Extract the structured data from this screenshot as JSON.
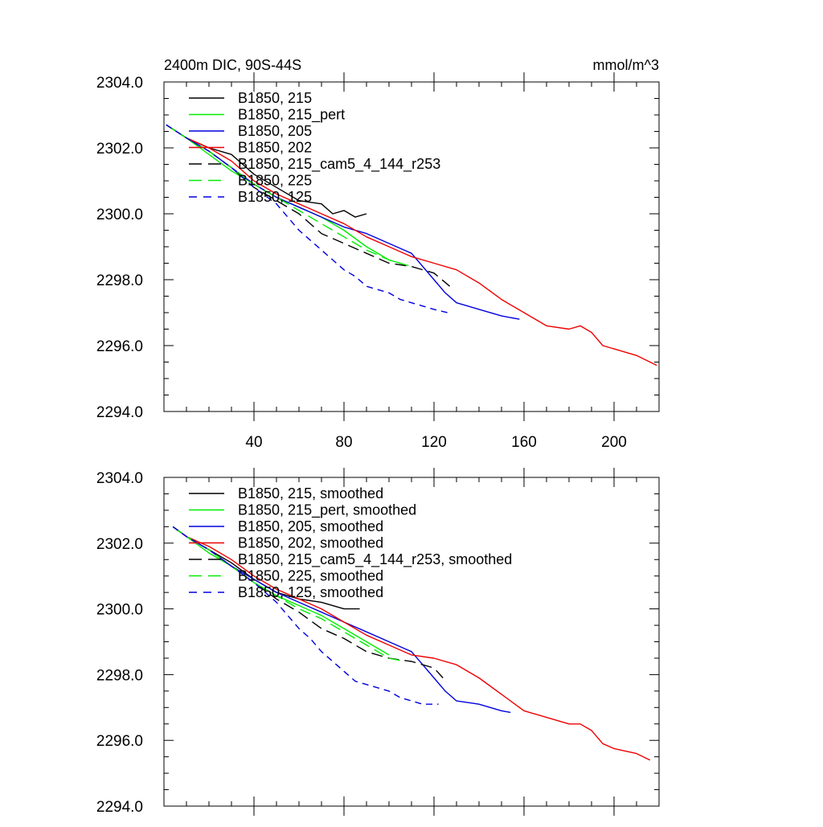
{
  "chart_data": [
    {
      "type": "line",
      "title": "2400m DIC, 90S-44S",
      "units": "mmol/m^3",
      "xlim": [
        0,
        220
      ],
      "ylim": [
        2294.0,
        2304.0
      ],
      "xticks": [
        40,
        80,
        120,
        160,
        200
      ],
      "xtick_labels": [
        "40",
        "80",
        "120",
        "160",
        "200"
      ],
      "yticks": [
        2294.0,
        2296.0,
        2298.0,
        2300.0,
        2302.0,
        2304.0
      ],
      "ytick_labels": [
        "2294.0",
        "2296.0",
        "2298.0",
        "2300.0",
        "2302.0",
        "2304.0"
      ],
      "grid": false,
      "legend_position": "top-left",
      "series": [
        {
          "name": "B1850, 215",
          "color": "#000000",
          "dash": "solid",
          "x": [
            1,
            10,
            20,
            30,
            35,
            40,
            50,
            60,
            70,
            75,
            80,
            85,
            90
          ],
          "y": [
            2302.7,
            2302.3,
            2302.0,
            2301.8,
            2301.5,
            2301.2,
            2300.8,
            2300.4,
            2300.3,
            2300.0,
            2300.1,
            2299.9,
            2300.0
          ]
        },
        {
          "name": "B1850, 215_pert",
          "color": "#00ee00",
          "dash": "solid",
          "x": [
            1,
            10,
            20,
            30,
            40,
            50,
            60,
            70,
            80,
            90,
            100,
            105
          ],
          "y": [
            2302.7,
            2302.3,
            2301.8,
            2301.3,
            2300.9,
            2300.5,
            2300.2,
            2299.9,
            2299.5,
            2299.0,
            2298.6,
            2298.5
          ]
        },
        {
          "name": "B1850, 205",
          "color": "#0000dd",
          "dash": "solid",
          "x": [
            1,
            10,
            20,
            30,
            40,
            50,
            60,
            70,
            80,
            90,
            100,
            110,
            120,
            125,
            130,
            140,
            150,
            158
          ],
          "y": [
            2302.7,
            2302.3,
            2301.9,
            2301.4,
            2300.9,
            2300.5,
            2300.2,
            2299.9,
            2299.6,
            2299.4,
            2299.1,
            2298.8,
            2298.0,
            2297.6,
            2297.3,
            2297.1,
            2296.9,
            2296.8
          ]
        },
        {
          "name": "B1850, 202",
          "color": "#ee0000",
          "dash": "solid",
          "x": [
            1,
            10,
            20,
            30,
            40,
            50,
            60,
            70,
            80,
            90,
            100,
            110,
            120,
            130,
            140,
            150,
            160,
            170,
            180,
            185,
            190,
            195,
            200,
            210,
            219
          ],
          "y": [
            2302.7,
            2302.3,
            2302.0,
            2301.6,
            2301.0,
            2300.6,
            2300.3,
            2300.0,
            2299.7,
            2299.3,
            2299.0,
            2298.7,
            2298.5,
            2298.3,
            2297.9,
            2297.4,
            2297.0,
            2296.6,
            2296.5,
            2296.6,
            2296.4,
            2296.0,
            2295.9,
            2295.7,
            2295.4
          ]
        },
        {
          "name": "B1850, 215_cam5_4_144_r253",
          "color": "#000000",
          "dash": "long",
          "x": [
            1,
            10,
            20,
            30,
            40,
            50,
            60,
            70,
            80,
            90,
            100,
            110,
            120,
            127
          ],
          "y": [
            2302.7,
            2302.3,
            2301.9,
            2301.4,
            2300.8,
            2300.4,
            2300.0,
            2299.4,
            2299.1,
            2298.8,
            2298.5,
            2298.4,
            2298.2,
            2297.8
          ]
        },
        {
          "name": "B1850, 225",
          "color": "#00ee00",
          "dash": "long",
          "x": [
            1,
            10,
            20,
            30,
            40,
            50,
            60,
            70,
            80,
            90,
            100,
            110
          ],
          "y": [
            2302.7,
            2302.3,
            2301.9,
            2301.4,
            2300.9,
            2300.5,
            2300.1,
            2299.7,
            2299.3,
            2298.9,
            2298.6,
            2298.4
          ]
        },
        {
          "name": "B1850, 125",
          "color": "#0000dd",
          "dash": "short",
          "x": [
            1,
            10,
            20,
            30,
            40,
            50,
            55,
            60,
            65,
            70,
            75,
            80,
            85,
            90,
            95,
            100,
            105,
            110,
            115,
            120,
            126
          ],
          "y": [
            2302.7,
            2302.3,
            2301.9,
            2301.4,
            2300.8,
            2300.3,
            2299.9,
            2299.5,
            2299.2,
            2298.9,
            2298.6,
            2298.3,
            2298.1,
            2297.8,
            2297.7,
            2297.6,
            2297.4,
            2297.3,
            2297.2,
            2297.1,
            2297.0
          ]
        }
      ]
    },
    {
      "type": "line",
      "xlim": [
        0,
        220
      ],
      "ylim": [
        2294.0,
        2304.0
      ],
      "xticks": [
        40,
        80,
        120,
        160,
        200
      ],
      "yticks": [
        2294.0,
        2296.0,
        2298.0,
        2300.0,
        2302.0,
        2304.0
      ],
      "ytick_labels": [
        "2294.0",
        "2296.0",
        "2298.0",
        "2300.0",
        "2302.0",
        "2304.0"
      ],
      "grid": false,
      "legend_position": "top-left",
      "series": [
        {
          "name": "B1850, 215, smoothed",
          "color": "#000000",
          "dash": "solid",
          "x": [
            4,
            10,
            20,
            30,
            40,
            50,
            60,
            70,
            80,
            87
          ],
          "y": [
            2302.5,
            2302.2,
            2301.8,
            2301.4,
            2300.9,
            2300.5,
            2300.3,
            2300.2,
            2300.0,
            2300.0
          ]
        },
        {
          "name": "B1850, 215_pert, smoothed",
          "color": "#00ee00",
          "dash": "solid",
          "x": [
            4,
            10,
            20,
            30,
            40,
            50,
            60,
            70,
            80,
            90,
            100
          ],
          "y": [
            2302.5,
            2302.2,
            2301.7,
            2301.3,
            2300.8,
            2300.4,
            2300.1,
            2299.8,
            2299.4,
            2299.0,
            2298.6
          ]
        },
        {
          "name": "B1850, 205, smoothed",
          "color": "#0000dd",
          "dash": "solid",
          "x": [
            4,
            10,
            20,
            30,
            40,
            50,
            60,
            70,
            80,
            90,
            100,
            110,
            120,
            125,
            130,
            140,
            150,
            154
          ],
          "y": [
            2302.5,
            2302.2,
            2301.8,
            2301.3,
            2300.9,
            2300.5,
            2300.2,
            2299.9,
            2299.6,
            2299.3,
            2299.0,
            2298.7,
            2297.9,
            2297.5,
            2297.2,
            2297.1,
            2296.9,
            2296.85
          ]
        },
        {
          "name": "B1850, 202, smoothed",
          "color": "#ee0000",
          "dash": "solid",
          "x": [
            4,
            10,
            20,
            30,
            40,
            50,
            60,
            70,
            80,
            90,
            100,
            110,
            120,
            130,
            140,
            150,
            160,
            170,
            180,
            185,
            190,
            195,
            200,
            210,
            216
          ],
          "y": [
            2302.5,
            2302.2,
            2301.9,
            2301.5,
            2301.0,
            2300.6,
            2300.3,
            2300.0,
            2299.6,
            2299.2,
            2298.9,
            2298.6,
            2298.5,
            2298.3,
            2297.9,
            2297.4,
            2296.9,
            2296.7,
            2296.5,
            2296.5,
            2296.3,
            2295.9,
            2295.75,
            2295.6,
            2295.4
          ]
        },
        {
          "name": "B1850, 215_cam5_4_144_r253, smoothed",
          "color": "#000000",
          "dash": "long",
          "x": [
            4,
            10,
            20,
            30,
            40,
            50,
            60,
            70,
            80,
            90,
            100,
            110,
            120,
            124
          ],
          "y": [
            2302.5,
            2302.2,
            2301.8,
            2301.3,
            2300.8,
            2300.3,
            2299.9,
            2299.4,
            2299.1,
            2298.7,
            2298.5,
            2298.4,
            2298.2,
            2297.9
          ]
        },
        {
          "name": "B1850, 225, smoothed",
          "color": "#00ee00",
          "dash": "long",
          "x": [
            4,
            10,
            20,
            30,
            40,
            50,
            60,
            70,
            80,
            90,
            100,
            107
          ],
          "y": [
            2302.5,
            2302.2,
            2301.8,
            2301.3,
            2300.8,
            2300.4,
            2300.0,
            2299.7,
            2299.3,
            2298.9,
            2298.5,
            2298.4
          ]
        },
        {
          "name": "B1850, 125, smoothed",
          "color": "#0000dd",
          "dash": "short",
          "x": [
            4,
            10,
            20,
            30,
            40,
            50,
            55,
            60,
            65,
            70,
            75,
            80,
            85,
            90,
            95,
            100,
            105,
            110,
            115,
            122
          ],
          "y": [
            2302.5,
            2302.2,
            2301.8,
            2301.3,
            2300.8,
            2300.2,
            2299.8,
            2299.4,
            2299.1,
            2298.7,
            2298.4,
            2298.1,
            2297.8,
            2297.7,
            2297.6,
            2297.5,
            2297.3,
            2297.2,
            2297.1,
            2297.1
          ]
        }
      ]
    }
  ]
}
